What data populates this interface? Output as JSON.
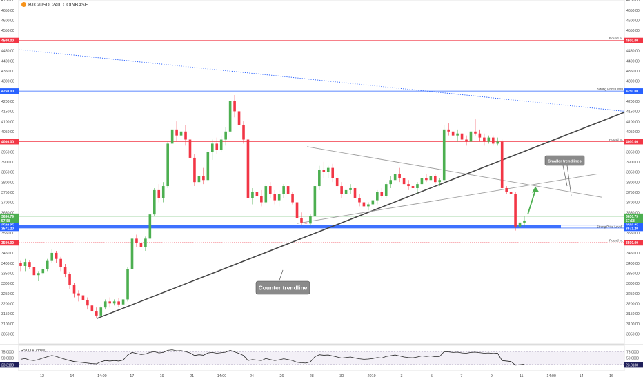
{
  "header": {
    "symbol": "BTC/USD, 240, COINBASE"
  },
  "chart_data": {
    "type": "candlestick",
    "price_ylim": [
      3000,
      4700
    ],
    "price_ticks": [
      3050,
      3100,
      3150,
      3200,
      3250,
      3300,
      3350,
      3400,
      3450,
      3500,
      3550,
      3600,
      3650,
      3700,
      3750,
      3800,
      3850,
      3900,
      3950,
      4000,
      4050,
      4100,
      4150,
      4200,
      4250,
      4300,
      4350,
      4400,
      4450,
      4500,
      4550,
      4600,
      4650,
      4700
    ],
    "x_tick_labels": [
      "12",
      "14",
      "14:00",
      "17",
      "19",
      "21",
      "14:00",
      "24",
      "26",
      "28",
      "30",
      "2019",
      "3",
      "5",
      "7",
      "9",
      "11",
      "14:00",
      "14",
      "16"
    ],
    "colors": {
      "up": "#4caf50",
      "down": "#f23645",
      "trendline": "#444444",
      "tag_red": "#f23645",
      "tag_blue": "#2962ff",
      "tag_green": "#4caf50",
      "zone_blue": "#2962ff",
      "rsi_line": "#222222",
      "dotted_trend": "#2962ff"
    },
    "horizontal_levels": [
      {
        "price": 4500,
        "label": "Round nr.",
        "tag": "4500.00",
        "style": "solid",
        "color": "#f23645"
      },
      {
        "price": 4250,
        "label": "Strong Price Level",
        "tag": "4250.00",
        "style": "solid",
        "color": "#2962ff"
      },
      {
        "price": 4000,
        "label": "Round nr.",
        "tag": "4000.00",
        "style": "solid",
        "color": "#f23645"
      },
      {
        "price": 3630.79,
        "label": "",
        "tag": "3630.79",
        "style": "solid",
        "color": "#4caf50"
      },
      {
        "price": 3500,
        "label": "Round nr.",
        "tag": "3500.00",
        "style": "dotted",
        "color": "#f23645"
      }
    ],
    "support_zone": {
      "low": 3571.2,
      "high": 3588.25,
      "label": "Strong Price Level",
      "tags": [
        "3588.25",
        "3571.20"
      ]
    },
    "current_price_tags": {
      "left": "57:58",
      "right": "57:58"
    },
    "annotations": [
      {
        "text": "Counter trendline"
      },
      {
        "text": "Smaller trendlines"
      }
    ],
    "candles": [
      [
        3400,
        3410,
        3360,
        3385
      ],
      [
        3385,
        3420,
        3360,
        3405
      ],
      [
        3405,
        3415,
        3370,
        3380
      ],
      [
        3380,
        3395,
        3320,
        3340
      ],
      [
        3340,
        3360,
        3310,
        3350
      ],
      [
        3350,
        3380,
        3340,
        3370
      ],
      [
        3370,
        3420,
        3360,
        3410
      ],
      [
        3410,
        3470,
        3400,
        3450
      ],
      [
        3450,
        3460,
        3400,
        3420
      ],
      [
        3420,
        3430,
        3360,
        3380
      ],
      [
        3380,
        3395,
        3330,
        3345
      ],
      [
        3345,
        3355,
        3270,
        3290
      ],
      [
        3290,
        3300,
        3230,
        3250
      ],
      [
        3250,
        3265,
        3210,
        3240
      ],
      [
        3240,
        3250,
        3200,
        3215
      ],
      [
        3215,
        3230,
        3170,
        3190
      ],
      [
        3190,
        3200,
        3140,
        3160
      ],
      [
        3160,
        3180,
        3130,
        3140
      ],
      [
        3140,
        3190,
        3130,
        3180
      ],
      [
        3180,
        3220,
        3170,
        3210
      ],
      [
        3210,
        3230,
        3180,
        3200
      ],
      [
        3200,
        3220,
        3190,
        3210
      ],
      [
        3210,
        3225,
        3180,
        3195
      ],
      [
        3195,
        3230,
        3190,
        3220
      ],
      [
        3220,
        3380,
        3210,
        3370
      ],
      [
        3370,
        3530,
        3360,
        3520
      ],
      [
        3520,
        3540,
        3480,
        3500
      ],
      [
        3500,
        3520,
        3450,
        3480
      ],
      [
        3480,
        3530,
        3460,
        3520
      ],
      [
        3520,
        3650,
        3510,
        3640
      ],
      [
        3640,
        3770,
        3630,
        3760
      ],
      [
        3760,
        3790,
        3700,
        3720
      ],
      [
        3720,
        3800,
        3700,
        3780
      ],
      [
        3780,
        4000,
        3770,
        3990
      ],
      [
        3990,
        4080,
        3970,
        4060
      ],
      [
        4060,
        4100,
        4000,
        4030
      ],
      [
        4030,
        4130,
        3990,
        4050
      ],
      [
        4050,
        4080,
        3980,
        4010
      ],
      [
        4010,
        4030,
        3900,
        3920
      ],
      [
        3920,
        3940,
        3780,
        3800
      ],
      [
        3800,
        3850,
        3770,
        3830
      ],
      [
        3830,
        3870,
        3790,
        3810
      ],
      [
        3810,
        3960,
        3800,
        3950
      ],
      [
        3950,
        4010,
        3910,
        3990
      ],
      [
        3990,
        4020,
        3940,
        3960
      ],
      [
        3960,
        4030,
        3950,
        4010
      ],
      [
        4010,
        4070,
        3980,
        4050
      ],
      [
        4050,
        4240,
        4040,
        4200
      ],
      [
        4200,
        4230,
        4120,
        4150
      ],
      [
        4150,
        4170,
        4060,
        4080
      ],
      [
        4080,
        4100,
        3990,
        4010
      ],
      [
        4010,
        4030,
        3700,
        3720
      ],
      [
        3720,
        3770,
        3690,
        3750
      ],
      [
        3750,
        3780,
        3700,
        3730
      ],
      [
        3730,
        3760,
        3680,
        3700
      ],
      [
        3700,
        3790,
        3690,
        3780
      ],
      [
        3780,
        3800,
        3720,
        3740
      ],
      [
        3740,
        3760,
        3690,
        3710
      ],
      [
        3710,
        3760,
        3680,
        3740
      ],
      [
        3740,
        3790,
        3720,
        3780
      ],
      [
        3780,
        3790,
        3720,
        3740
      ],
      [
        3740,
        3750,
        3690,
        3700
      ],
      [
        3700,
        3710,
        3600,
        3620
      ],
      [
        3620,
        3650,
        3590,
        3600
      ],
      [
        3600,
        3620,
        3580,
        3595
      ],
      [
        3595,
        3640,
        3585,
        3630
      ],
      [
        3630,
        3790,
        3620,
        3780
      ],
      [
        3780,
        3880,
        3760,
        3860
      ],
      [
        3860,
        3900,
        3820,
        3850
      ],
      [
        3850,
        3880,
        3820,
        3870
      ],
      [
        3870,
        3890,
        3800,
        3820
      ],
      [
        3820,
        3840,
        3760,
        3780
      ],
      [
        3780,
        3800,
        3720,
        3740
      ],
      [
        3740,
        3770,
        3700,
        3760
      ],
      [
        3760,
        3790,
        3740,
        3770
      ],
      [
        3770,
        3780,
        3710,
        3720
      ],
      [
        3720,
        3740,
        3680,
        3700
      ],
      [
        3700,
        3720,
        3660,
        3680
      ],
      [
        3680,
        3700,
        3660,
        3690
      ],
      [
        3690,
        3720,
        3670,
        3710
      ],
      [
        3710,
        3760,
        3690,
        3750
      ],
      [
        3750,
        3770,
        3720,
        3730
      ],
      [
        3730,
        3800,
        3720,
        3790
      ],
      [
        3790,
        3830,
        3770,
        3810
      ],
      [
        3810,
        3860,
        3790,
        3840
      ],
      [
        3840,
        3870,
        3800,
        3820
      ],
      [
        3820,
        3840,
        3780,
        3790
      ],
      [
        3790,
        3810,
        3760,
        3780
      ],
      [
        3780,
        3800,
        3750,
        3770
      ],
      [
        3770,
        3800,
        3740,
        3790
      ],
      [
        3790,
        3830,
        3780,
        3820
      ],
      [
        3820,
        3840,
        3800,
        3810
      ],
      [
        3810,
        3840,
        3800,
        3830
      ],
      [
        3830,
        3840,
        3790,
        3800
      ],
      [
        3800,
        3820,
        3780,
        3810
      ],
      [
        3810,
        4080,
        3800,
        4060
      ],
      [
        4060,
        4090,
        4030,
        4050
      ],
      [
        4050,
        4070,
        4020,
        4030
      ],
      [
        4030,
        4060,
        4000,
        4040
      ],
      [
        4040,
        4050,
        3990,
        4010
      ],
      [
        4010,
        4030,
        3980,
        4000
      ],
      [
        4000,
        4060,
        3990,
        4050
      ],
      [
        4050,
        4110,
        4030,
        4040
      ],
      [
        4040,
        4060,
        4000,
        4020
      ],
      [
        4020,
        4040,
        3980,
        4000
      ],
      [
        4000,
        4030,
        3990,
        4020
      ],
      [
        4020,
        4030,
        3980,
        3990
      ],
      [
        3990,
        4020,
        3980,
        4000
      ],
      [
        4000,
        4010,
        3760,
        3770
      ],
      [
        3770,
        3780,
        3740,
        3750
      ],
      [
        3750,
        3760,
        3720,
        3740
      ],
      [
        3740,
        3750,
        3560,
        3580
      ],
      [
        3580,
        3610,
        3560,
        3600
      ],
      [
        3600,
        3630,
        3580,
        3610
      ]
    ],
    "rsi": {
      "label": "RSI (14, close)",
      "ylim": [
        0,
        100
      ],
      "ticks": [
        75,
        50,
        25
      ],
      "axis_tags": [
        "75.0000",
        "50.0000",
        "25.0000"
      ],
      "current_tag": "23.3188",
      "values": [
        45,
        48,
        42,
        40,
        44,
        50,
        55,
        60,
        56,
        50,
        45,
        40,
        36,
        34,
        32,
        30,
        28,
        27,
        35,
        40,
        38,
        40,
        38,
        42,
        62,
        72,
        68,
        64,
        66,
        72,
        75,
        70,
        72,
        80,
        82,
        78,
        79,
        75,
        70,
        60,
        63,
        61,
        70,
        72,
        69,
        71,
        73,
        80,
        74,
        68,
        60,
        40,
        44,
        42,
        40,
        48,
        44,
        40,
        43,
        47,
        44,
        40,
        33,
        31,
        30,
        35,
        55,
        63,
        61,
        62,
        58,
        54,
        50,
        52,
        54,
        50,
        47,
        45,
        46,
        48,
        52,
        50,
        56,
        59,
        62,
        58,
        54,
        52,
        51,
        54,
        58,
        56,
        58,
        55,
        56,
        75,
        74,
        72,
        73,
        70,
        69,
        72,
        73,
        71,
        69,
        70,
        68,
        69,
        40,
        38,
        36,
        22,
        24,
        26
      ]
    }
  }
}
